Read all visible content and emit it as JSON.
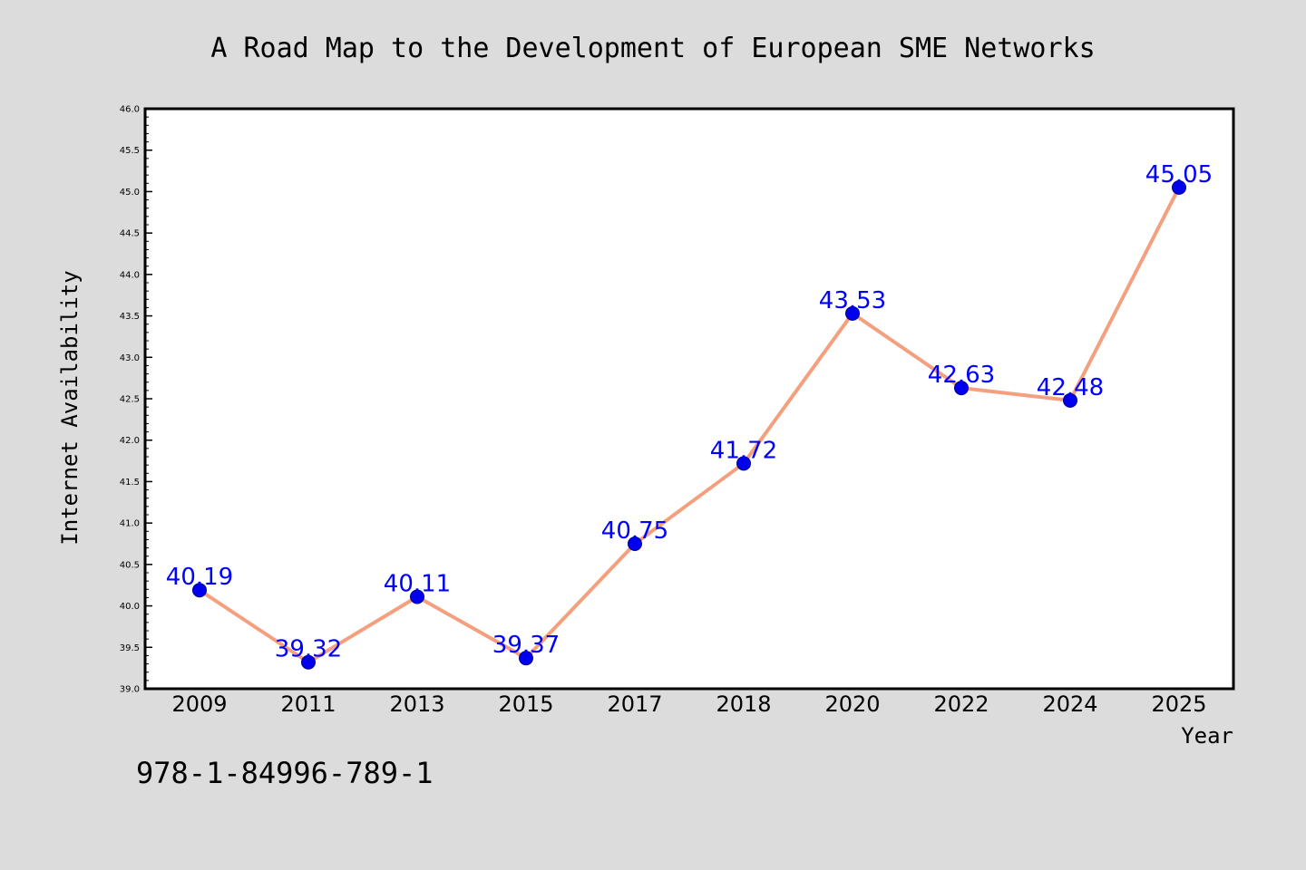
{
  "chart_data": {
    "type": "line",
    "title": "A Road Map to the Development of European SME Networks",
    "xlabel": "Year",
    "ylabel": "Internet Availability",
    "categories": [
      "2009",
      "2011",
      "2013",
      "2015",
      "2017",
      "2018",
      "2020",
      "2022",
      "2024",
      "2025"
    ],
    "series": [
      {
        "values": [
          40.19,
          39.32,
          40.11,
          39.37,
          40.75,
          41.72,
          43.53,
          42.63,
          42.48,
          45.05
        ],
        "labels": [
          "40.19",
          "39.32",
          "40.11",
          "39.37",
          "40.75",
          "41.72",
          "43.53",
          "42.63",
          "42.48",
          "45.05"
        ]
      }
    ],
    "ylim": [
      39.0,
      46.0
    ],
    "yticks": [
      "39.0",
      "39.5",
      "40.0",
      "40.5",
      "41.0",
      "41.5",
      "42.0",
      "42.5",
      "43.0",
      "43.5",
      "44.0",
      "44.5",
      "45.0",
      "45.5",
      "46.0"
    ],
    "grid": false,
    "colors": {
      "line": "#f4a07e",
      "marker": "#0000ee",
      "label": "#0000ff",
      "background": "#dcdcdc",
      "plot_background": "#ffffff"
    }
  },
  "footer_text": "978-1-84996-789-1"
}
